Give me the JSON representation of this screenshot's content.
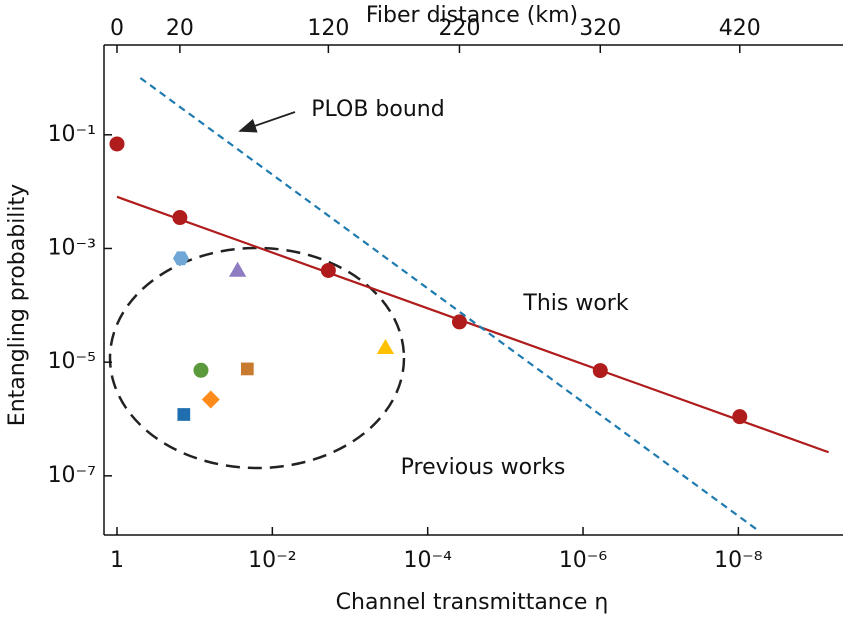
{
  "chart_data": {
    "type": "scatter",
    "xlabel": "Channel transmittance η",
    "x2label": "Fiber distance (km)",
    "ylabel": "Entangling probability",
    "log_x": true,
    "log_y": true,
    "xlim": [
      1.47,
      4.5e-10
    ],
    "ylim": [
      3.8,
      9.1e-09
    ],
    "xticks": [
      1,
      {
        "value": 0.01,
        "label": "10⁻²"
      },
      {
        "value": 0.0001,
        "label": "10⁻⁴"
      },
      {
        "value": 1e-06,
        "label": "10⁻⁶"
      },
      {
        "value": 1e-08,
        "label": "10⁻⁸"
      }
    ],
    "x2ticks": [
      {
        "value": 1,
        "label": "0"
      },
      {
        "value": 0.155,
        "label": "20"
      },
      {
        "value": 0.0019,
        "label": "120"
      },
      {
        "value": 3.9e-05,
        "label": "220"
      },
      {
        "value": 6e-07,
        "label": "320"
      },
      {
        "value": 9.6e-09,
        "label": "420"
      }
    ],
    "yticks": [
      {
        "value": 0.1,
        "label": "10⁻¹"
      },
      {
        "value": 0.001,
        "label": "10⁻³"
      },
      {
        "value": 1e-05,
        "label": "10⁻⁵"
      },
      {
        "value": 1e-07,
        "label": "10⁻⁷"
      }
    ],
    "annotations": [
      {
        "text": "PLOB bound",
        "color": "#111111"
      },
      {
        "text": "This work",
        "color": "#b01c1c"
      },
      {
        "text": "Previous works",
        "color": "#111111"
      }
    ],
    "series": [
      {
        "color": "#b01c1c",
        "marker": "circle",
        "x": [
          1,
          0.155,
          0.0019,
          3.9e-05,
          6e-07,
          9.6e-09
        ],
        "values": [
          0.069,
          0.0035,
          0.00041,
          5.1e-05,
          7.1e-06,
          1.1e-06
        ]
      },
      {
        "color": "#b01c1c",
        "line": "solid",
        "x": [
          1,
          6.9e-10
        ],
        "values": [
          0.0081,
          2.6e-07
        ]
      },
      {
        "color": "#1f7ab0",
        "line": "dashed",
        "x": [
          0.5,
          5.6e-09
        ],
        "values": [
          1.0,
          1.1e-08
        ]
      },
      {
        "color": "#6fa8d6",
        "marker": "hexagon",
        "x": [
          0.15
        ],
        "values": [
          0.00067
        ]
      },
      {
        "color": "#8e7cc3",
        "marker": "triangle",
        "x": [
          0.028
        ],
        "values": [
          0.00039
        ]
      },
      {
        "color": "#ffc000",
        "marker": "triangle",
        "x": [
          0.00035
        ],
        "values": [
          1.7e-05
        ]
      },
      {
        "color": "#5b9a3c",
        "marker": "circle",
        "x": [
          0.083
        ],
        "values": [
          7.2e-06
        ]
      },
      {
        "color": "#c87a2e",
        "marker": "square",
        "x": [
          0.021
        ],
        "values": [
          7.6e-06
        ]
      },
      {
        "color": "#ff8c1a",
        "marker": "diamond",
        "x": [
          0.062
        ],
        "values": [
          2.2e-06
        ]
      },
      {
        "color": "#1f6fb0",
        "marker": "square",
        "x": [
          0.138
        ],
        "values": [
          1.2e-06
        ]
      }
    ]
  }
}
